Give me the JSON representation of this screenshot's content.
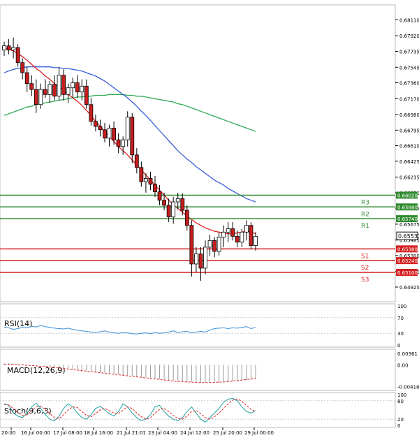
{
  "chart_data": [
    {
      "type": "candlestick",
      "panel": "price",
      "ylim": [
        0.6485,
        0.6823
      ],
      "price_ticks": [
        "0.68110",
        "0.67920",
        "0.67735",
        "0.67545",
        "0.67360",
        "0.67170",
        "0.66980",
        "0.66795",
        "0.66610",
        "0.66425",
        "0.66235",
        "0.66050",
        "0.65865",
        "0.65675",
        "0.65485",
        "0.65300",
        "0.65110",
        "0.64925"
      ],
      "last_price": {
        "value": "0.65531",
        "y": 0.65531,
        "color": "#000000"
      },
      "levels": [
        {
          "name": "R3",
          "label": "0.66020",
          "y": 0.6602,
          "color": "#2e8b2e"
        },
        {
          "name": "R2",
          "label": "0.65880",
          "y": 0.6588,
          "color": "#2e8b2e"
        },
        {
          "name": "R1",
          "label": "0.65740",
          "y": 0.6574,
          "color": "#2e8b2e"
        },
        {
          "name": "S1",
          "label": "0.65380",
          "y": 0.6538,
          "color": "#d42020"
        },
        {
          "name": "S2",
          "label": "0.65240",
          "y": 0.6524,
          "color": "#d42020"
        },
        {
          "name": "S3",
          "label": "0.65100",
          "y": 0.651,
          "color": "#d42020"
        }
      ],
      "candles": [
        [
          0.6775,
          0.6785,
          0.6768,
          0.678
        ],
        [
          0.678,
          0.6788,
          0.677,
          0.6775
        ],
        [
          0.6775,
          0.679,
          0.6765,
          0.6778
        ],
        [
          0.6778,
          0.6782,
          0.6755,
          0.676
        ],
        [
          0.676,
          0.6765,
          0.674,
          0.6748
        ],
        [
          0.6748,
          0.6755,
          0.6725,
          0.6735
        ],
        [
          0.6735,
          0.6745,
          0.672,
          0.6728
        ],
        [
          0.6728,
          0.674,
          0.67,
          0.671
        ],
        [
          0.671,
          0.6735,
          0.6705,
          0.6728
        ],
        [
          0.6728,
          0.674,
          0.6718,
          0.6722
        ],
        [
          0.6722,
          0.6738,
          0.6712,
          0.6734
        ],
        [
          0.6734,
          0.6745,
          0.6715,
          0.672
        ],
        [
          0.672,
          0.6755,
          0.6715,
          0.6745
        ],
        [
          0.6745,
          0.6752,
          0.6715,
          0.6722
        ],
        [
          0.6722,
          0.6735,
          0.6712,
          0.673
        ],
        [
          0.673,
          0.6742,
          0.6718,
          0.6736
        ],
        [
          0.6736,
          0.6745,
          0.6718,
          0.6725
        ],
        [
          0.6725,
          0.674,
          0.6715,
          0.6732
        ],
        [
          0.6732,
          0.674,
          0.6705,
          0.671
        ],
        [
          0.671,
          0.6718,
          0.6685,
          0.669
        ],
        [
          0.669,
          0.6698,
          0.6678,
          0.6684
        ],
        [
          0.6684,
          0.6692,
          0.6672,
          0.668
        ],
        [
          0.668,
          0.6688,
          0.6665,
          0.667
        ],
        [
          0.667,
          0.6686,
          0.666,
          0.6682
        ],
        [
          0.6682,
          0.669,
          0.6662,
          0.6668
        ],
        [
          0.6668,
          0.6676,
          0.6652,
          0.666
        ],
        [
          0.666,
          0.6672,
          0.665,
          0.6668
        ],
        [
          0.6668,
          0.6702,
          0.666,
          0.6695
        ],
        [
          0.6695,
          0.67,
          0.664,
          0.665
        ],
        [
          0.665,
          0.6658,
          0.6628,
          0.6635
        ],
        [
          0.6635,
          0.6642,
          0.6612,
          0.6618
        ],
        [
          0.6618,
          0.6628,
          0.6605,
          0.6622
        ],
        [
          0.6622,
          0.663,
          0.6608,
          0.6615
        ],
        [
          0.6615,
          0.6625,
          0.66,
          0.6606
        ],
        [
          0.6606,
          0.6614,
          0.659,
          0.6596
        ],
        [
          0.6596,
          0.6605,
          0.6584,
          0.659
        ],
        [
          0.659,
          0.6598,
          0.657,
          0.6576
        ],
        [
          0.6576,
          0.66,
          0.6568,
          0.6594
        ],
        [
          0.6594,
          0.6605,
          0.6585,
          0.6598
        ],
        [
          0.6598,
          0.6604,
          0.6578,
          0.6584
        ],
        [
          0.6584,
          0.659,
          0.656,
          0.6566
        ],
        [
          0.6566,
          0.6572,
          0.6505,
          0.652
        ],
        [
          0.652,
          0.654,
          0.651,
          0.6532
        ],
        [
          0.6532,
          0.654,
          0.65,
          0.6515
        ],
        [
          0.6515,
          0.6548,
          0.6508,
          0.654
        ],
        [
          0.654,
          0.6555,
          0.653,
          0.6548
        ],
        [
          0.6548,
          0.6552,
          0.6528,
          0.6535
        ],
        [
          0.6535,
          0.6558,
          0.653,
          0.6552
        ],
        [
          0.6552,
          0.6566,
          0.654,
          0.6558
        ],
        [
          0.6558,
          0.657,
          0.6546,
          0.6562
        ],
        [
          0.6562,
          0.657,
          0.6548,
          0.6553
        ],
        [
          0.6553,
          0.656,
          0.654,
          0.6546
        ],
        [
          0.6546,
          0.6562,
          0.654,
          0.6558
        ],
        [
          0.6558,
          0.6572,
          0.6548,
          0.6566
        ],
        [
          0.6566,
          0.657,
          0.6538,
          0.6542
        ],
        [
          0.6542,
          0.6558,
          0.6536,
          0.6553
        ]
      ],
      "ma_fast": {
        "color": "#e02020",
        "values": [
          0.6778,
          0.6776,
          0.6774,
          0.6771,
          0.6767,
          0.6763,
          0.6758,
          0.6753,
          0.6749,
          0.6744,
          0.674,
          0.6735,
          0.6731,
          0.6727,
          0.6722,
          0.6718,
          0.6714,
          0.6709,
          0.6703,
          0.6697,
          0.669,
          0.6684,
          0.6678,
          0.6672,
          0.6666,
          0.666,
          0.6655,
          0.665,
          0.6644,
          0.6638,
          0.6632,
          0.6626,
          0.662,
          0.6614,
          0.6608,
          0.6602,
          0.6596,
          0.6591,
          0.6586,
          0.6582,
          0.6577,
          0.6573,
          0.6569,
          0.6566,
          0.6563,
          0.6561,
          0.6559,
          0.6558,
          0.6557,
          0.6556,
          0.6556,
          0.6557,
          0.6558,
          0.6559,
          0.6558,
          0.6556
        ]
      },
      "ma_mid": {
        "color": "#3a5fd9",
        "values": [
          0.6748,
          0.675,
          0.6752,
          0.6753,
          0.6754,
          0.6755,
          0.6755,
          0.6755,
          0.6755,
          0.6755,
          0.6755,
          0.6754,
          0.6754,
          0.6753,
          0.6753,
          0.6752,
          0.6751,
          0.675,
          0.6748,
          0.6746,
          0.6744,
          0.6741,
          0.6738,
          0.6734,
          0.673,
          0.6726,
          0.6722,
          0.6718,
          0.6713,
          0.6708,
          0.6702,
          0.6697,
          0.6691,
          0.6685,
          0.6679,
          0.6673,
          0.6667,
          0.6661,
          0.6655,
          0.665,
          0.6645,
          0.6641,
          0.6636,
          0.6632,
          0.6628,
          0.6624,
          0.662,
          0.6617,
          0.6614,
          0.661,
          0.6607,
          0.6604,
          0.6601,
          0.6598,
          0.6596,
          0.6594
        ]
      },
      "ma_slow": {
        "color": "#2faa55",
        "values": [
          0.6697,
          0.6699,
          0.6701,
          0.6703,
          0.6705,
          0.6707,
          0.6708,
          0.671,
          0.6711,
          0.6712,
          0.6713,
          0.6714,
          0.6715,
          0.6716,
          0.6717,
          0.6718,
          0.6719,
          0.6719,
          0.672,
          0.672,
          0.6721,
          0.6721,
          0.6721,
          0.6722,
          0.6722,
          0.6722,
          0.6722,
          0.6721,
          0.6721,
          0.672,
          0.672,
          0.6719,
          0.6718,
          0.6717,
          0.6716,
          0.6715,
          0.6714,
          0.6713,
          0.6711,
          0.671,
          0.6708,
          0.6706,
          0.6704,
          0.6702,
          0.67,
          0.6698,
          0.6696,
          0.6694,
          0.6692,
          0.669,
          0.6688,
          0.6686,
          0.6684,
          0.6682,
          0.668,
          0.6678
        ]
      }
    },
    {
      "type": "line",
      "panel": "rsi",
      "title": "RSI(14)",
      "ylim": [
        0,
        100
      ],
      "ticks": [
        "100",
        "70",
        "30",
        "0"
      ],
      "levels": [
        70,
        30
      ],
      "color": "#3a8fd9",
      "values": [
        46,
        44,
        40,
        42,
        45,
        44,
        48,
        46,
        50,
        47,
        45,
        43,
        42,
        41,
        43,
        40,
        38,
        36,
        35,
        33,
        32,
        34,
        36,
        33,
        31,
        30,
        32,
        31,
        29,
        28,
        30,
        31,
        29,
        32,
        30,
        31,
        33,
        36,
        32,
        34,
        35,
        31,
        33,
        35,
        33,
        38,
        42,
        43,
        44,
        42,
        44,
        43,
        45,
        47,
        42,
        45
      ]
    },
    {
      "type": "bar",
      "panel": "macd",
      "title": "MACD(12,26,9)",
      "ylim": [
        -0.0045,
        0.0026
      ],
      "ticks": [
        "0.00361",
        "0.00",
        "-0.004182"
      ],
      "bar_color": "#9a9a9a",
      "signal_color": "#e02020",
      "histogram": [
        0.0003,
        0.0003,
        0.0002,
        0.0002,
        0.0001,
        0.0001,
        0.0,
        -0.0001,
        -0.0001,
        -0.0002,
        -0.0003,
        -0.0004,
        -0.0005,
        -0.0006,
        -0.0007,
        -0.0008,
        -0.0009,
        -0.001,
        -0.0011,
        -0.0012,
        -0.0013,
        -0.0014,
        -0.0015,
        -0.0016,
        -0.0017,
        -0.0018,
        -0.0019,
        -0.002,
        -0.0021,
        -0.0022,
        -0.0023,
        -0.0024,
        -0.0025,
        -0.0026,
        -0.0027,
        -0.0028,
        -0.0029,
        -0.003,
        -0.0031,
        -0.0032,
        -0.0033,
        -0.0033,
        -0.0034,
        -0.0034,
        -0.0034,
        -0.0034,
        -0.0034,
        -0.0034,
        -0.0033,
        -0.0033,
        -0.0032,
        -0.0031,
        -0.003,
        -0.0029,
        -0.0028,
        -0.0027
      ],
      "signal": [
        0.0001,
        0.0001,
        0.0001,
        0.0,
        0.0,
        -0.0001,
        -0.0001,
        -0.0002,
        -0.0003,
        -0.0003,
        -0.0004,
        -0.0005,
        -0.0006,
        -0.0007,
        -0.0008,
        -0.0009,
        -0.001,
        -0.0011,
        -0.0012,
        -0.0013,
        -0.0014,
        -0.0015,
        -0.0016,
        -0.0017,
        -0.0018,
        -0.0019,
        -0.002,
        -0.0021,
        -0.0022,
        -0.0023,
        -0.0024,
        -0.0025,
        -0.0026,
        -0.0027,
        -0.0028,
        -0.0029,
        -0.003,
        -0.0031,
        -0.0032,
        -0.0032,
        -0.0033,
        -0.0033,
        -0.0034,
        -0.0034,
        -0.0034,
        -0.0034,
        -0.0034,
        -0.0033,
        -0.0033,
        -0.0032,
        -0.0031,
        -0.003,
        -0.0029,
        -0.0028,
        -0.0027,
        -0.0026
      ]
    },
    {
      "type": "line",
      "panel": "stoch",
      "title": "Stoch(9,6,3)",
      "ylim": [
        0,
        100
      ],
      "ticks": [
        "100",
        "80",
        "20",
        "0"
      ],
      "levels": [
        80,
        20
      ],
      "k_color": "#20a0a0",
      "d_color": "#e02020",
      "k": [
        70,
        65,
        40,
        30,
        25,
        40,
        60,
        72,
        55,
        35,
        20,
        15,
        30,
        55,
        70,
        60,
        40,
        25,
        20,
        35,
        55,
        62,
        50,
        38,
        30,
        45,
        70,
        60,
        40,
        25,
        15,
        20,
        35,
        60,
        65,
        45,
        30,
        20,
        15,
        25,
        45,
        60,
        40,
        20,
        10,
        25,
        40,
        55,
        75,
        85,
        88,
        80,
        60,
        45,
        40,
        48
      ],
      "d": [
        68,
        66,
        55,
        42,
        32,
        35,
        48,
        60,
        62,
        52,
        38,
        25,
        22,
        35,
        50,
        60,
        58,
        45,
        32,
        28,
        38,
        50,
        55,
        48,
        40,
        38,
        50,
        60,
        55,
        40,
        28,
        20,
        25,
        40,
        52,
        55,
        45,
        32,
        22,
        20,
        30,
        45,
        48,
        38,
        25,
        20,
        28,
        40,
        55,
        70,
        82,
        86,
        78,
        65,
        52,
        45
      ]
    }
  ],
  "time_axis": [
    "20:00",
    "16 Jul 00:00",
    "17 Jul 08:00",
    "18 Jul 16:00",
    "21 Jul 21:01",
    "23 Jul 04:00",
    "24 Jul 12:00",
    "25 Jul 20:00",
    "29 Jul 00:00"
  ]
}
